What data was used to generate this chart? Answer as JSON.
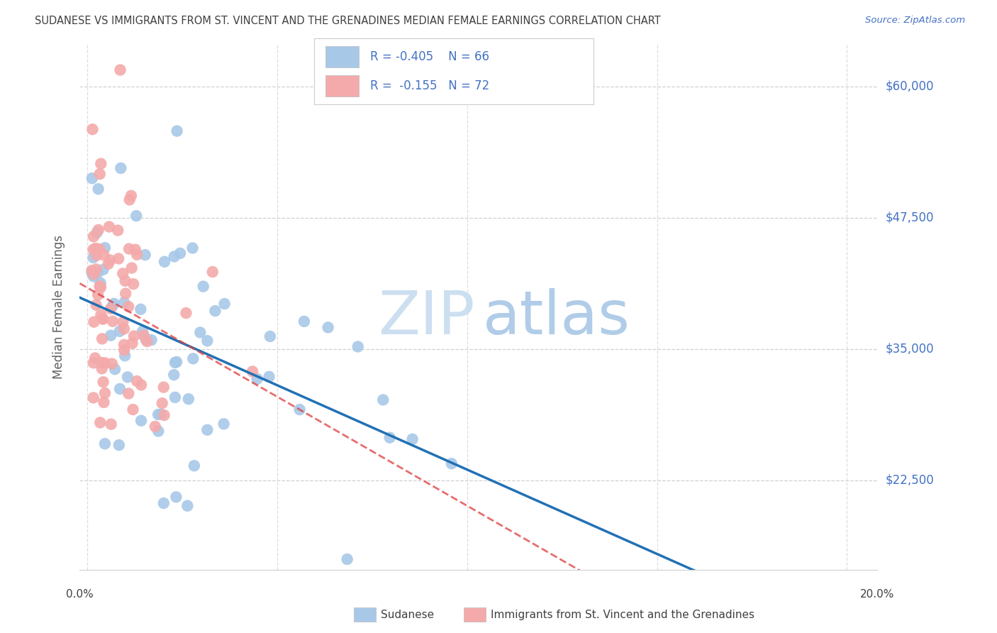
{
  "title": "SUDANESE VS IMMIGRANTS FROM ST. VINCENT AND THE GRENADINES MEDIAN FEMALE EARNINGS CORRELATION CHART",
  "source": "Source: ZipAtlas.com",
  "ylabel": "Median Female Earnings",
  "ytick_labels": [
    "$60,000",
    "$47,500",
    "$35,000",
    "$22,500"
  ],
  "ytick_values": [
    60000,
    47500,
    35000,
    22500
  ],
  "ymin": 14000,
  "ymax": 64000,
  "xmin": -0.002,
  "xmax": 0.208,
  "legend_blue_R": "-0.405",
  "legend_blue_N": "66",
  "legend_pink_R": "-0.155",
  "legend_pink_N": "72",
  "blue_scatter_color": "#a8c8e8",
  "pink_scatter_color": "#f4aaaa",
  "blue_line_color": "#2171b5",
  "pink_line_color": "#de3e3e",
  "watermark_zip_color": "#ccdff0",
  "watermark_atlas_color": "#b0cce8",
  "grid_color": "#d0d0d0",
  "title_color": "#404040",
  "source_color": "#4472c4",
  "ylabel_color": "#606060",
  "label_color": "#404040",
  "legend_text_color": "#4472c4",
  "legend_R_color": "#cc2222",
  "bottom_label_color": "#404040"
}
